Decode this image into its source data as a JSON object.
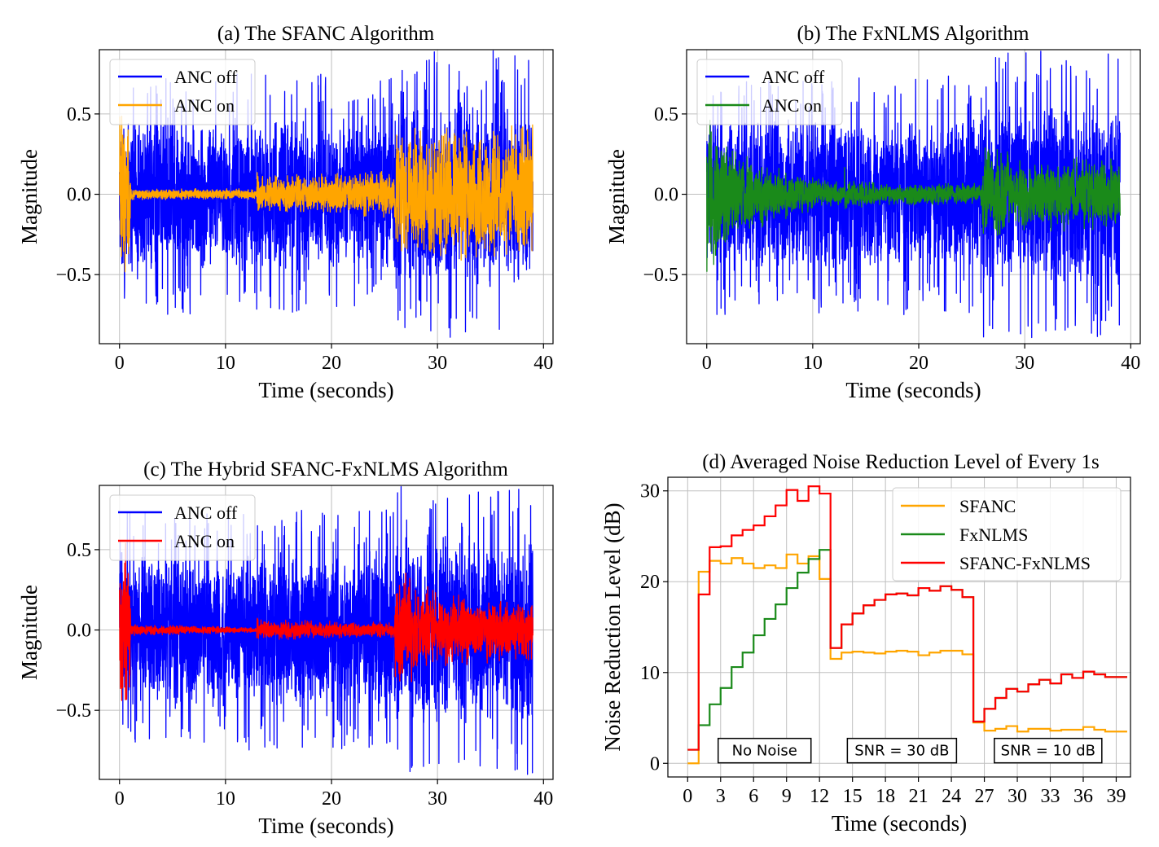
{
  "figure": {
    "panels": [
      {
        "title": "(a) The SFANC Algorithm"
      },
      {
        "title": "(b) The FxNLMS Algorithm"
      },
      {
        "title": "(c) The Hybrid SFANC-FxNLMS Algorithm"
      },
      {
        "title": "(d) Averaged Noise Reduction Level of Every 1s"
      }
    ]
  },
  "colors": {
    "anc_off": "#0000ff",
    "sfanc": "#ffa500",
    "fxnlms": "#1a8a1a",
    "hybrid": "#ff0000",
    "grid": "#bfbfbf"
  },
  "chart_data": [
    {
      "type": "line",
      "title": "(a) The SFANC Algorithm",
      "xlabel": "Time (seconds)",
      "ylabel": "Magnitude",
      "xlim": [
        -1.9,
        40.9
      ],
      "ylim": [
        -0.93,
        0.9
      ],
      "xticks": [
        0,
        10,
        20,
        30,
        40
      ],
      "xtick_labels": [
        "0",
        "10",
        "20",
        "30",
        "40"
      ],
      "yticks": [
        0.5,
        0.0,
        -0.5
      ],
      "ytick_labels": [
        "0.5",
        "0.0",
        "−0.5"
      ],
      "grid": true,
      "legend_position": "top-left",
      "series": [
        {
          "name": "ANC off",
          "color": "#0000ff",
          "envelope": {
            "t": [
              0,
              13,
              13,
              26,
              26,
              39
            ],
            "amp": [
              0.5,
              0.5,
              0.5,
              0.5,
              0.6,
              0.6
            ]
          }
        },
        {
          "name": "ANC on",
          "color": "#ffa500",
          "envelope": {
            "t": [
              0,
              0.95,
              1.05,
              12.95,
              13.0,
              13.1,
              25.95,
              26.05,
              39
            ],
            "amp": [
              0.5,
              0.5,
              0.03,
              0.03,
              0.22,
              0.1,
              0.13,
              0.38,
              0.38
            ]
          }
        }
      ]
    },
    {
      "type": "line",
      "title": "(b) The FxNLMS Algorithm",
      "xlabel": "Time (seconds)",
      "ylabel": "Magnitude",
      "xlim": [
        -1.9,
        40.9
      ],
      "ylim": [
        -0.93,
        0.9
      ],
      "xticks": [
        0,
        10,
        20,
        30,
        40
      ],
      "xtick_labels": [
        "0",
        "10",
        "20",
        "30",
        "40"
      ],
      "yticks": [
        0.5,
        0.0,
        -0.5
      ],
      "ytick_labels": [
        "0.5",
        "0.0",
        "−0.5"
      ],
      "grid": true,
      "legend_position": "top-left",
      "series": [
        {
          "name": "ANC off",
          "color": "#0000ff",
          "envelope": {
            "t": [
              0,
              13,
              13,
              26,
              26,
              39
            ],
            "amp": [
              0.5,
              0.5,
              0.5,
              0.5,
              0.6,
              0.6
            ]
          }
        },
        {
          "name": "ANC on",
          "color": "#1a8a1a",
          "envelope": {
            "t": [
              0,
              1,
              3,
              6,
              10,
              12.95,
              13.0,
              13.1,
              17,
              25.95,
              26.05,
              30,
              39
            ],
            "amp": [
              0.48,
              0.35,
              0.25,
              0.16,
              0.09,
              0.06,
              0.22,
              0.08,
              0.06,
              0.06,
              0.3,
              0.2,
              0.2
            ]
          }
        }
      ]
    },
    {
      "type": "line",
      "title": "(c) The Hybrid SFANC-FxNLMS Algorithm",
      "xlabel": "Time (seconds)",
      "ylabel": "Magnitude",
      "xlim": [
        -1.9,
        40.9
      ],
      "ylim": [
        -0.93,
        0.9
      ],
      "xticks": [
        0,
        10,
        20,
        30,
        40
      ],
      "xtick_labels": [
        "0",
        "10",
        "20",
        "30",
        "40"
      ],
      "yticks": [
        0.5,
        0.0,
        -0.5
      ],
      "ytick_labels": [
        "0.5",
        "0.0",
        "−0.5"
      ],
      "grid": true,
      "legend_position": "top-left",
      "series": [
        {
          "name": "ANC off",
          "color": "#0000ff",
          "envelope": {
            "t": [
              0,
              13,
              13,
              26,
              26,
              39
            ],
            "amp": [
              0.5,
              0.5,
              0.5,
              0.5,
              0.6,
              0.6
            ]
          }
        },
        {
          "name": "ANC on",
          "color": "#ff0000",
          "envelope": {
            "t": [
              0,
              0.95,
              1.05,
              12.95,
              13.0,
              13.1,
              25.95,
              26.05,
              30,
              39
            ],
            "amp": [
              0.5,
              0.5,
              0.03,
              0.015,
              0.17,
              0.06,
              0.04,
              0.35,
              0.2,
              0.16
            ]
          }
        }
      ]
    },
    {
      "type": "line",
      "step": "post",
      "title": "(d) Averaged Noise Reduction Level of Every 1s",
      "xlabel": "Time (seconds)",
      "ylabel": "Noise Reduction Level (dB)",
      "xlim": [
        -1.8,
        40.3
      ],
      "ylim": [
        -1.5,
        31.5
      ],
      "xticks": [
        0,
        3,
        6,
        9,
        12,
        15,
        18,
        21,
        24,
        27,
        30,
        33,
        36,
        39
      ],
      "xtick_labels": [
        "0",
        "3",
        "6",
        "9",
        "12",
        "15",
        "18",
        "21",
        "24",
        "27",
        "30",
        "33",
        "36",
        "39"
      ],
      "yticks": [
        0,
        10,
        20,
        30
      ],
      "ytick_labels": [
        "0",
        "10",
        "20",
        "30"
      ],
      "grid": true,
      "legend_position": "top-right",
      "x": [
        0,
        1,
        2,
        3,
        4,
        5,
        6,
        7,
        8,
        9,
        10,
        11,
        12,
        13,
        14,
        15,
        16,
        17,
        18,
        19,
        20,
        21,
        22,
        23,
        24,
        25,
        26,
        27,
        28,
        29,
        30,
        31,
        32,
        33,
        34,
        35,
        36,
        37,
        38,
        39
      ],
      "series": [
        {
          "name": "SFANC",
          "color": "#ffa500",
          "values": [
            0,
            21.1,
            22.3,
            22.0,
            22.6,
            22.0,
            21.5,
            21.8,
            21.5,
            23.0,
            22.0,
            22.8,
            20.3,
            11.5,
            12.2,
            12.3,
            12.2,
            12.1,
            12.3,
            12.4,
            12.3,
            11.9,
            12.2,
            12.4,
            12.4,
            12.0,
            4.5,
            3.6,
            3.8,
            4.1,
            3.5,
            3.8,
            3.8,
            3.6,
            3.7,
            3.7,
            4.0,
            3.7,
            3.5,
            3.5
          ]
        },
        {
          "name": "FxNLMS",
          "color": "#1a8a1a",
          "values": [
            1.5,
            4.2,
            6.5,
            8.3,
            10.6,
            12.2,
            14.1,
            15.9,
            17.5,
            19.3,
            21.0,
            22.5,
            23.5,
            12.7,
            15.3,
            16.5,
            17.4,
            18.0,
            18.6,
            18.7,
            18.5,
            19.3,
            19.0,
            19.5,
            19.1,
            18.3,
            4.6,
            6.0,
            7.2,
            8.2,
            7.9,
            8.7,
            9.2,
            8.8,
            9.8,
            9.4,
            10.1,
            9.8,
            9.5,
            9.5
          ]
        },
        {
          "name": "SFANC-FxNLMS",
          "color": "#ff0000",
          "values": [
            1.5,
            18.6,
            23.8,
            23.9,
            25.1,
            25.7,
            26.2,
            27.2,
            28.4,
            30.1,
            28.9,
            30.5,
            29.7,
            12.7,
            15.3,
            16.5,
            17.4,
            18.0,
            18.6,
            18.7,
            18.5,
            19.3,
            19.0,
            19.5,
            19.1,
            18.3,
            4.6,
            6.0,
            7.2,
            8.2,
            7.9,
            8.7,
            9.2,
            8.8,
            9.8,
            9.4,
            10.1,
            9.8,
            9.5,
            9.5
          ]
        }
      ],
      "annotations": [
        {
          "text": "No Noise",
          "x": 7,
          "y": 1.4
        },
        {
          "text": "SNR = 30 dB",
          "x": 19.5,
          "y": 1.4
        },
        {
          "text": "SNR = 10 dB",
          "x": 32.8,
          "y": 1.4
        }
      ]
    }
  ]
}
